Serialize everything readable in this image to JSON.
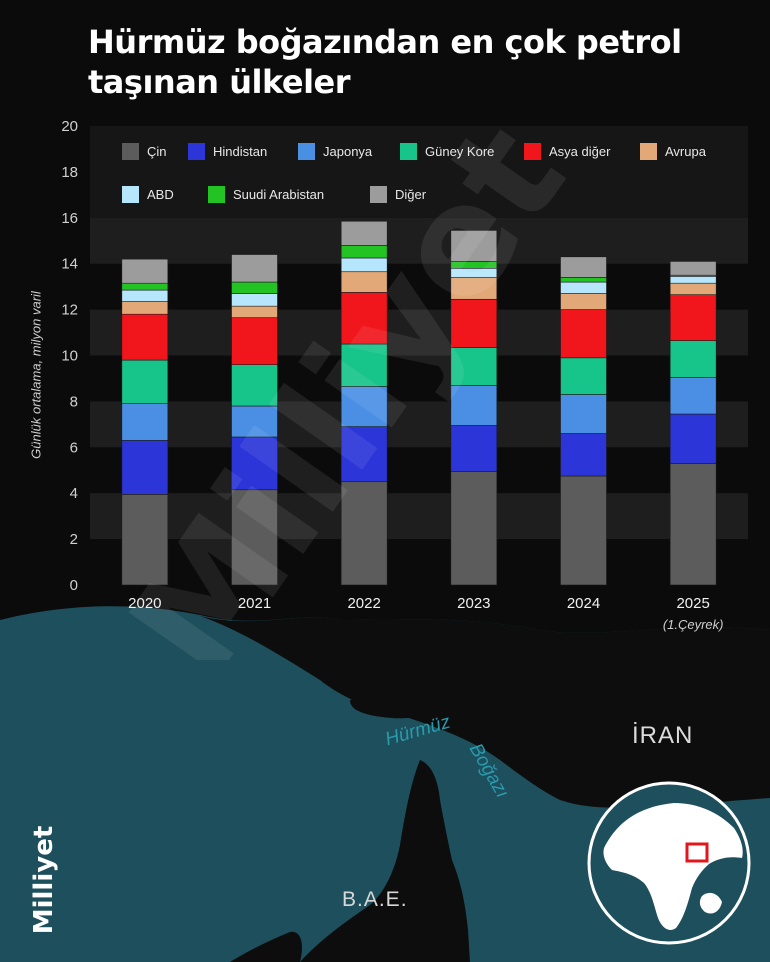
{
  "title_lines": [
    "Hürmüz boğazından en çok petrol",
    "taşınan ülkeler"
  ],
  "chart_data": {
    "type": "bar",
    "stacked": true,
    "ylabel": "Günlük ortalama, milyon varil",
    "ylim": [
      0,
      20
    ],
    "yticks": [
      0,
      2,
      4,
      6,
      8,
      10,
      12,
      14,
      16,
      18,
      20
    ],
    "categories": [
      "2020",
      "2021",
      "2022",
      "2023",
      "2024",
      "2025"
    ],
    "category_notes": [
      "",
      "",
      "",
      "",
      "",
      "(1.Çeyrek)"
    ],
    "legend_placement": "top, inside plot",
    "series": [
      {
        "name": "Çin",
        "color": "#5c5c5c",
        "values": [
          3.95,
          4.15,
          4.5,
          4.95,
          4.75,
          5.3
        ]
      },
      {
        "name": "Hindistan",
        "color": "#2b35d8",
        "values": [
          2.35,
          2.3,
          2.4,
          2.0,
          1.85,
          2.15
        ]
      },
      {
        "name": "Japonya",
        "color": "#4b8fe4",
        "values": [
          1.6,
          1.35,
          1.75,
          1.75,
          1.7,
          1.6
        ]
      },
      {
        "name": "Güney Kore",
        "color": "#17c48a",
        "values": [
          1.9,
          1.8,
          1.85,
          1.65,
          1.6,
          1.6
        ]
      },
      {
        "name": "Asya diğer",
        "color": "#f0161c",
        "values": [
          2.0,
          2.05,
          2.25,
          2.1,
          2.1,
          2.0
        ]
      },
      {
        "name": "Avrupa",
        "color": "#e2a877",
        "values": [
          0.55,
          0.5,
          0.9,
          0.95,
          0.7,
          0.5
        ]
      },
      {
        "name": "ABD",
        "color": "#b5e6fb",
        "values": [
          0.5,
          0.55,
          0.6,
          0.4,
          0.5,
          0.3
        ]
      },
      {
        "name": "Suudi Arabistan",
        "color": "#23c324",
        "values": [
          0.3,
          0.5,
          0.55,
          0.3,
          0.2,
          0.05
        ]
      },
      {
        "name": "Diğer",
        "color": "#9c9c9c",
        "values": [
          1.05,
          1.2,
          1.05,
          1.35,
          0.9,
          0.6
        ]
      }
    ]
  },
  "map": {
    "iran": "İRAN",
    "bae": "B.A.E.",
    "strait_line1": "Hürmüz",
    "strait_line2": "Boğazı"
  },
  "brand": "Milliyet",
  "watermark": "Milliyet",
  "colors": {
    "background": "#0b0b0b",
    "sea": "#1d4f5c",
    "land": "#0d0d0d",
    "band": "#1e1e1e"
  }
}
